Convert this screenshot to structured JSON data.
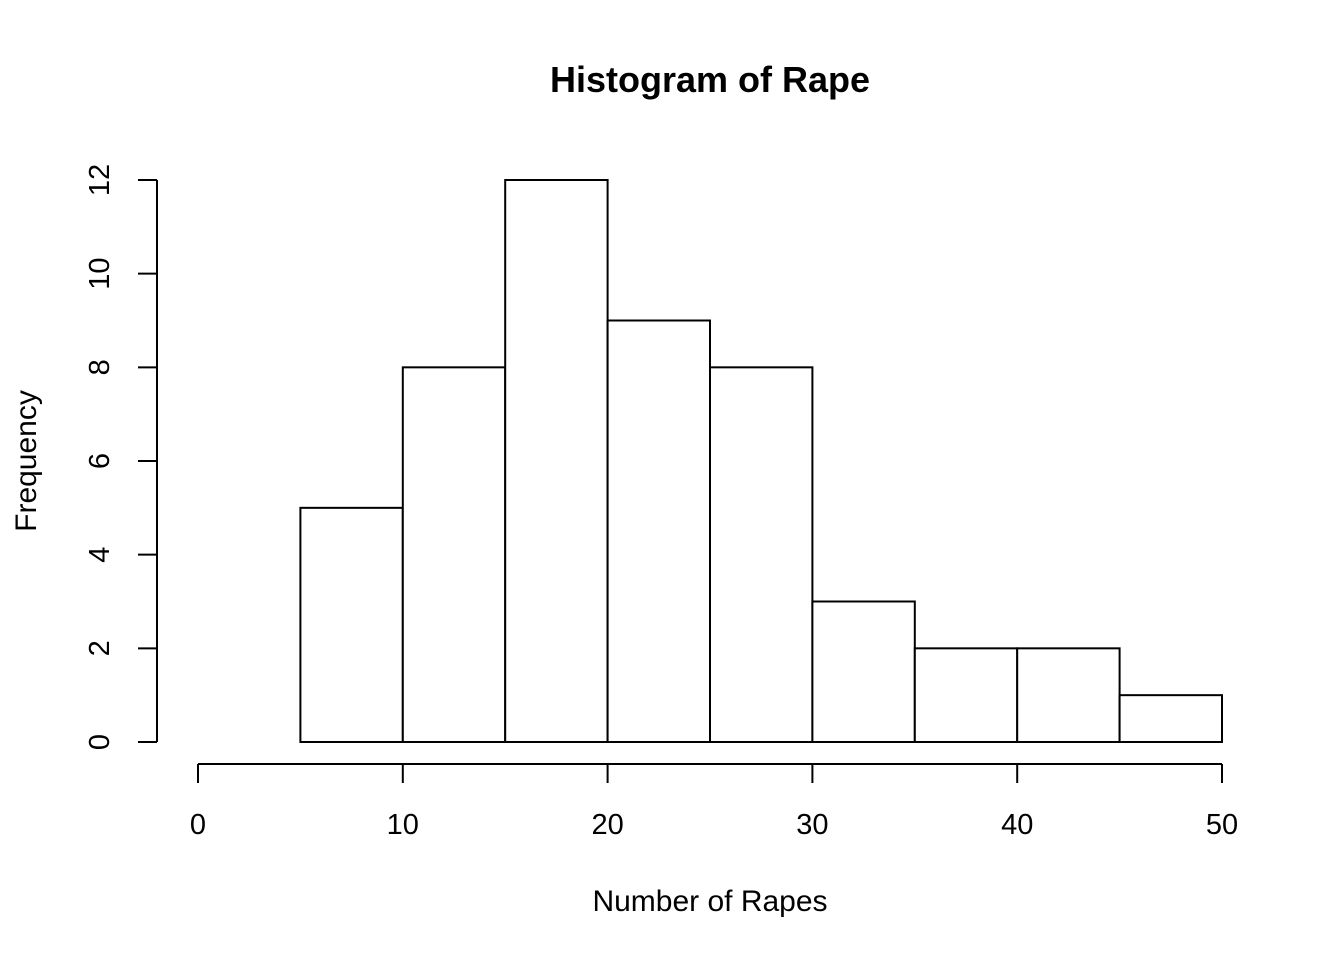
{
  "chart_data": {
    "type": "bar",
    "title": "Histogram of Rape",
    "xlabel": "Number of Rapes",
    "ylabel": "Frequency",
    "bins": [
      {
        "start": 5,
        "end": 10,
        "count": 5
      },
      {
        "start": 10,
        "end": 15,
        "count": 8
      },
      {
        "start": 15,
        "end": 20,
        "count": 12
      },
      {
        "start": 20,
        "end": 25,
        "count": 9
      },
      {
        "start": 25,
        "end": 30,
        "count": 8
      },
      {
        "start": 30,
        "end": 35,
        "count": 3
      },
      {
        "start": 35,
        "end": 40,
        "count": 2
      },
      {
        "start": 40,
        "end": 45,
        "count": 2
      },
      {
        "start": 45,
        "end": 50,
        "count": 1
      }
    ],
    "xlim": [
      0,
      50
    ],
    "ylim": [
      0,
      12
    ],
    "x_ticks": [
      "0",
      "10",
      "20",
      "30",
      "40",
      "50"
    ],
    "y_ticks": [
      "0",
      "2",
      "4",
      "6",
      "8",
      "10",
      "12"
    ],
    "grid": false,
    "bar_fill": "#ffffff",
    "bar_edge": "#000000"
  }
}
